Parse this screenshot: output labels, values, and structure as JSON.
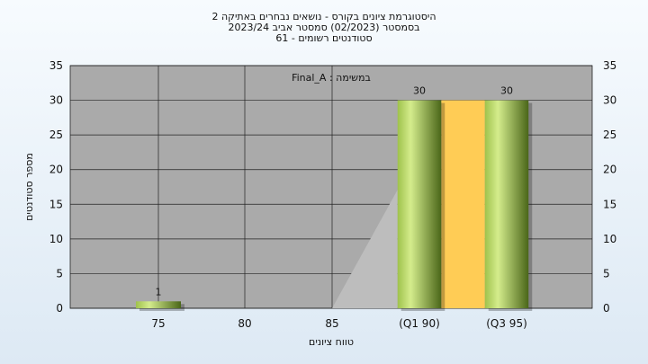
{
  "chart_data": {
    "type": "bar",
    "title_lines": [
      "היסטוגרמת ציונים בקורס - נושאים נבחרים באתיקה 2",
      "בסמסטר  (02/2023)  סמסטר אביב 2023/24",
      "סטודנטים רשומים - 61"
    ],
    "xlabel": "טווח ציונים",
    "ylabel": "מספר סטודנטים",
    "ylim": [
      0,
      35
    ],
    "yticks": [
      0,
      5,
      10,
      15,
      20,
      25,
      30,
      35
    ],
    "x_tick_labels": [
      "75",
      "80",
      "85",
      "(Q1 90)",
      "(Q3 95)"
    ],
    "bars": [
      {
        "label": "75",
        "value": 1
      },
      {
        "label": "(Q1 90)",
        "value": 30
      },
      {
        "label": "(Q3 95)",
        "value": 30
      }
    ],
    "annotation": "Final_A : במשימה",
    "grid": true,
    "colors": {
      "plot_bg": "#aaaaaa",
      "bar_light": "#c6e07a",
      "bar_dark": "#4e6a1c",
      "iqr_band": "#ffcc55",
      "area": "#bdbdbd"
    }
  }
}
